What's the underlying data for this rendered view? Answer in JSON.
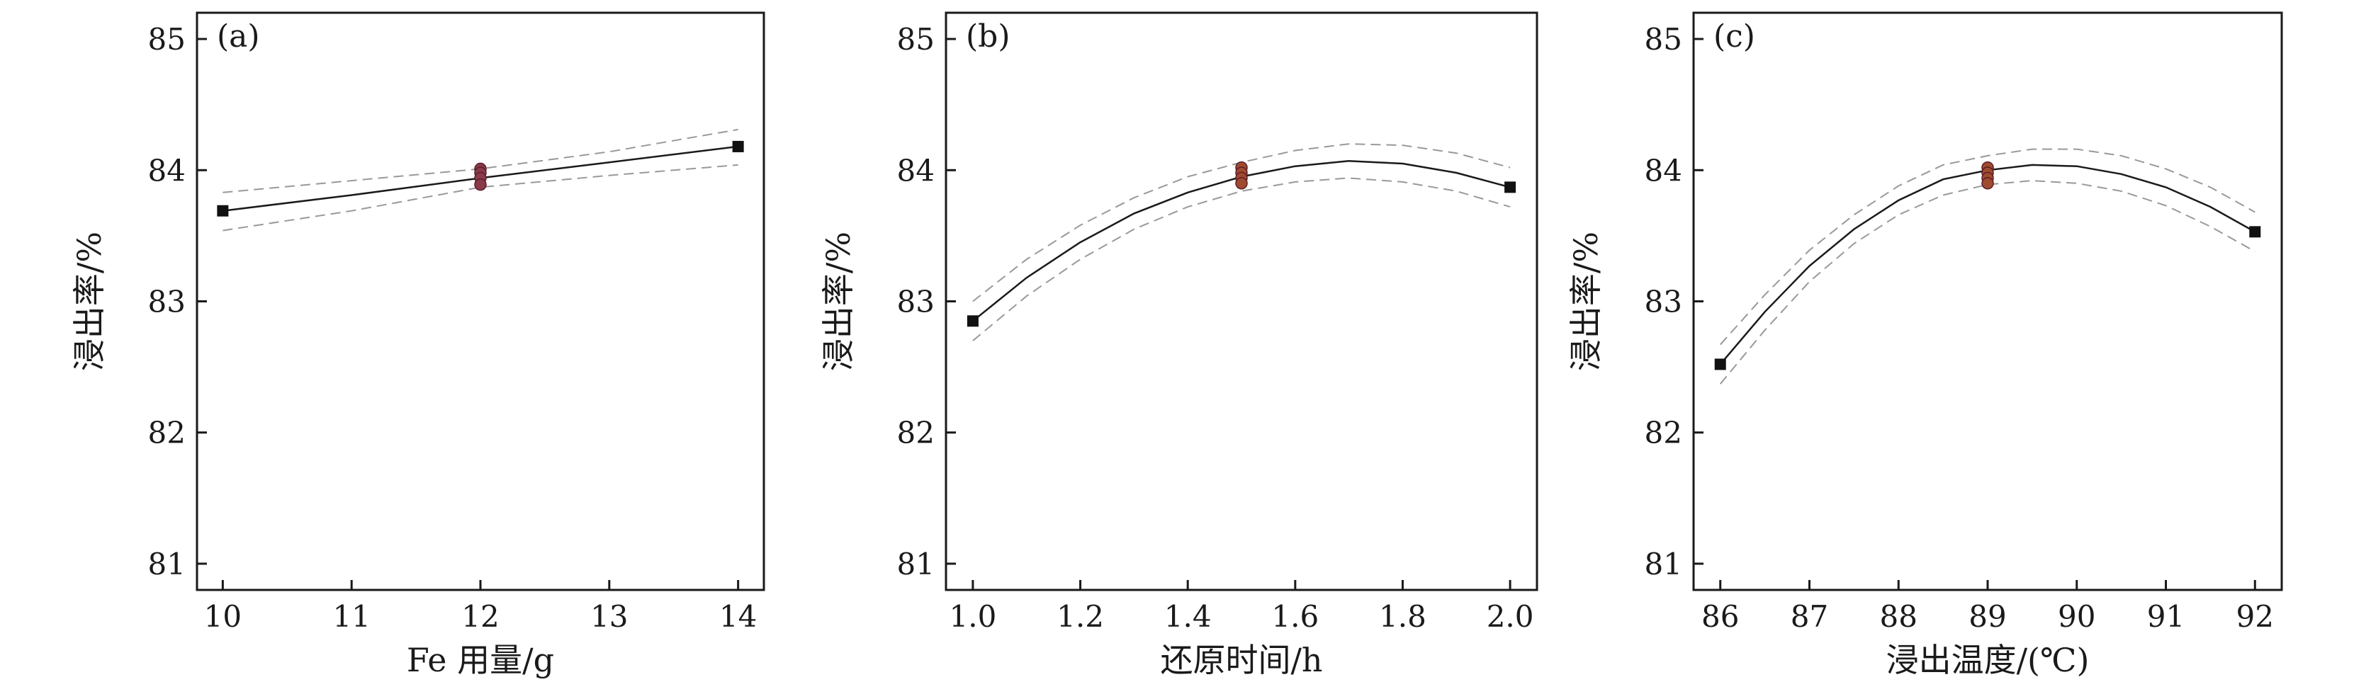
{
  "chart_data": [
    {
      "type": "line",
      "panel_label": "(a)",
      "xlabel": "Fe 用量/g",
      "ylabel": "浸出率/%",
      "xlim": [
        9.8,
        14.2
      ],
      "ylim": [
        80.8,
        85.2
      ],
      "xticks": [
        10,
        11,
        12,
        13,
        14
      ],
      "xtick_labels": [
        "10",
        "11",
        "12",
        "13",
        "14"
      ],
      "yticks": [
        81,
        82,
        83,
        84,
        85
      ],
      "ytick_labels": [
        "81",
        "82",
        "83",
        "84",
        "85"
      ],
      "fit": {
        "x": [
          10,
          11,
          12,
          13,
          14
        ],
        "y": [
          83.69,
          83.81,
          83.94,
          84.06,
          84.18
        ]
      },
      "ci_upper": {
        "x": [
          10,
          11,
          12,
          13,
          14
        ],
        "y": [
          83.83,
          83.92,
          84.01,
          84.14,
          84.31
        ]
      },
      "ci_lower": {
        "x": [
          10,
          11,
          12,
          13,
          14
        ],
        "y": [
          83.54,
          83.69,
          83.87,
          83.96,
          84.04
        ]
      },
      "design_points": {
        "x": [
          10,
          14
        ],
        "y": [
          83.69,
          84.18
        ]
      },
      "center_points": {
        "x": [
          12,
          12,
          12,
          12
        ],
        "y": [
          84.01,
          83.98,
          83.94,
          83.89
        ]
      },
      "colors": {
        "fit": "#1a1a1a",
        "ci": "#999999",
        "design_point": "#111111",
        "center_point": "#8b3a4a"
      }
    },
    {
      "type": "line",
      "panel_label": "(b)",
      "xlabel": "还原时间/h",
      "ylabel": "浸出率/%",
      "xlim": [
        0.95,
        2.05
      ],
      "ylim": [
        80.8,
        85.2
      ],
      "xticks": [
        1.0,
        1.2,
        1.4,
        1.6,
        1.8,
        2.0
      ],
      "xtick_labels": [
        "1.0",
        "1.2",
        "1.4",
        "1.6",
        "1.8",
        "2.0"
      ],
      "yticks": [
        81,
        82,
        83,
        84,
        85
      ],
      "ytick_labels": [
        "81",
        "82",
        "83",
        "84",
        "85"
      ],
      "fit": {
        "x": [
          1.0,
          1.1,
          1.2,
          1.3,
          1.4,
          1.5,
          1.6,
          1.7,
          1.8,
          1.9,
          2.0
        ],
        "y": [
          82.85,
          83.18,
          83.45,
          83.67,
          83.83,
          83.95,
          84.03,
          84.07,
          84.05,
          83.98,
          83.87
        ]
      },
      "ci_upper": {
        "x": [
          1.0,
          1.1,
          1.2,
          1.3,
          1.4,
          1.5,
          1.6,
          1.7,
          1.8,
          1.9,
          2.0
        ],
        "y": [
          83.0,
          83.32,
          83.58,
          83.79,
          83.95,
          84.06,
          84.15,
          84.2,
          84.19,
          84.13,
          84.02
        ]
      },
      "ci_lower": {
        "x": [
          1.0,
          1.1,
          1.2,
          1.3,
          1.4,
          1.5,
          1.6,
          1.7,
          1.8,
          1.9,
          2.0
        ],
        "y": [
          82.7,
          83.04,
          83.32,
          83.55,
          83.72,
          83.84,
          83.91,
          83.94,
          83.91,
          83.84,
          83.72
        ]
      },
      "design_points": {
        "x": [
          1.0,
          2.0
        ],
        "y": [
          82.85,
          83.87
        ]
      },
      "center_points": {
        "x": [
          1.5,
          1.5,
          1.5,
          1.5
        ],
        "y": [
          84.02,
          83.98,
          83.94,
          83.9
        ]
      },
      "colors": {
        "fit": "#1a1a1a",
        "ci": "#999999",
        "design_point": "#111111",
        "center_point": "#a04a2e"
      }
    },
    {
      "type": "line",
      "panel_label": "(c)",
      "xlabel": "浸出温度/(℃)",
      "ylabel": "浸出率/%",
      "xlim": [
        85.7,
        92.3
      ],
      "ylim": [
        80.8,
        85.2
      ],
      "xticks": [
        86,
        87,
        88,
        89,
        90,
        91,
        92
      ],
      "xtick_labels": [
        "86",
        "87",
        "88",
        "89",
        "90",
        "91",
        "92"
      ],
      "yticks": [
        81,
        82,
        83,
        84,
        85
      ],
      "ytick_labels": [
        "81",
        "82",
        "83",
        "84",
        "85"
      ],
      "fit": {
        "x": [
          86,
          86.5,
          87,
          87.5,
          88,
          88.5,
          89,
          89.5,
          90,
          90.5,
          91,
          91.5,
          92
        ],
        "y": [
          82.52,
          82.92,
          83.27,
          83.55,
          83.77,
          83.93,
          84.0,
          84.04,
          84.03,
          83.97,
          83.87,
          83.72,
          83.53
        ]
      },
      "ci_upper": {
        "x": [
          86,
          86.5,
          87,
          87.5,
          88,
          88.5,
          89,
          89.5,
          90,
          90.5,
          91,
          91.5,
          92
        ],
        "y": [
          82.67,
          83.05,
          83.39,
          83.66,
          83.88,
          84.04,
          84.11,
          84.16,
          84.16,
          84.11,
          84.01,
          83.87,
          83.68
        ]
      },
      "ci_lower": {
        "x": [
          86,
          86.5,
          87,
          87.5,
          88,
          88.5,
          89,
          89.5,
          90,
          90.5,
          91,
          91.5,
          92
        ],
        "y": [
          82.37,
          82.78,
          83.15,
          83.44,
          83.66,
          83.81,
          83.89,
          83.92,
          83.9,
          83.84,
          83.73,
          83.57,
          83.38
        ]
      },
      "design_points": {
        "x": [
          86,
          92
        ],
        "y": [
          82.52,
          83.53
        ]
      },
      "center_points": {
        "x": [
          89,
          89,
          89,
          89
        ],
        "y": [
          84.02,
          83.98,
          83.94,
          83.9
        ]
      },
      "colors": {
        "fit": "#1a1a1a",
        "ci": "#999999",
        "design_point": "#111111",
        "center_point": "#a04a2e"
      }
    }
  ]
}
